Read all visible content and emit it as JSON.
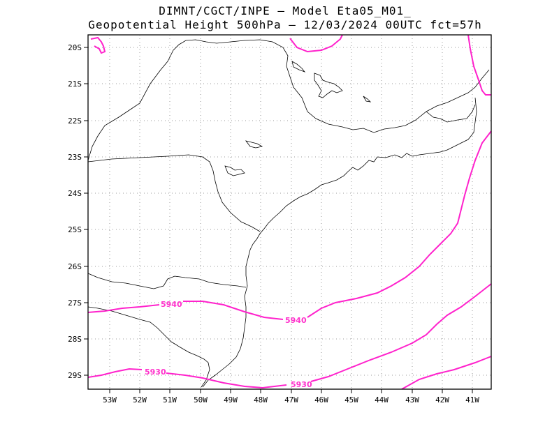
{
  "title": {
    "line1": "DIMNT/CGCT/INPE —  Model Eta05_M01_",
    "line2": "Geopotential Height 500hPa —  12/03/2024 00UTC fct=57h"
  },
  "lat_labels": [
    "20S",
    "21S",
    "22S",
    "23S",
    "24S",
    "25S",
    "26S",
    "27S",
    "28S",
    "29S"
  ],
  "lon_labels": [
    "53W",
    "52W",
    "51W",
    "50W",
    "49W",
    "48W",
    "47W",
    "46W",
    "45W",
    "44W",
    "43W",
    "42W",
    "41W"
  ],
  "contour_labels": [
    "5940",
    "5940",
    "5930",
    "5930"
  ],
  "colors": {
    "contour": "#ff22cc",
    "coast": "#000000",
    "grid": "#999999"
  }
}
